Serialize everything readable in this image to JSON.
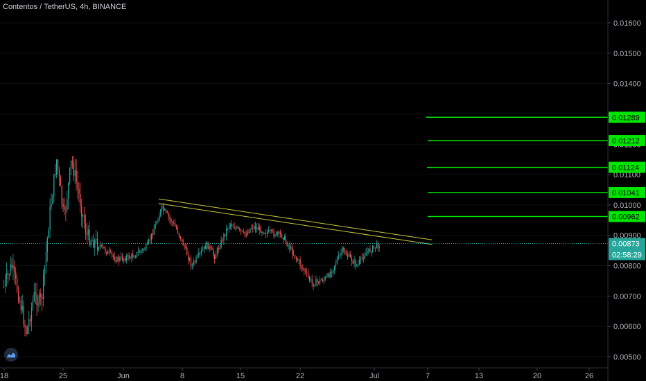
{
  "header": {
    "title": "Contentos / TetherUS, 4h, BINANCE"
  },
  "colors": {
    "background": "#000000",
    "up": "#26a69a",
    "down": "#ef5350",
    "trendline": "#c9c93a",
    "level": "#00e600",
    "last_price": "#26a69a",
    "axis_text": "#b2b5be"
  },
  "chart_data": {
    "type": "candlestick",
    "title": "Contentos / TetherUS, 4h, BINANCE",
    "x_ticks": [
      "18",
      "25",
      "Jun",
      "8",
      "15",
      "22",
      "Jul",
      "7",
      "13",
      "20",
      "26"
    ],
    "y_ticks": [
      "0.01600",
      "0.01500",
      "0.01400",
      "0.01300",
      "0.01200",
      "0.01100",
      "0.01000",
      "0.00900",
      "0.00800",
      "0.00700",
      "0.00600",
      "0.00500"
    ],
    "ylim": [
      0.0046,
      0.017
    ],
    "last_price": {
      "label": "0.00873",
      "value": 0.00873,
      "countdown": "02:58:29"
    },
    "levels": [
      {
        "label": "0.01289",
        "value": 0.01289
      },
      {
        "label": "0.01212",
        "value": 0.01212
      },
      {
        "label": "0.01124",
        "value": 0.01124
      },
      {
        "label": "0.01041",
        "value": 0.01041
      },
      {
        "label": "0.00962",
        "value": 0.00962
      }
    ],
    "trendlines": [
      {
        "from": {
          "x": "Jun 8",
          "y": 0.0102
        },
        "to": {
          "x": "Jul 14",
          "y": 0.00885
        }
      },
      {
        "from": {
          "x": "Jun 8",
          "y": 0.01005
        },
        "to": {
          "x": "Jul 14",
          "y": 0.0087
        }
      }
    ],
    "price_path": [
      {
        "x": "May 18",
        "price": 0.0073
      },
      {
        "x": "May 19",
        "price": 0.008
      },
      {
        "x": "May 20",
        "price": 0.007
      },
      {
        "x": "May 21",
        "price": 0.0058
      },
      {
        "x": "May 22",
        "price": 0.007
      },
      {
        "x": "May 23",
        "price": 0.0068
      },
      {
        "x": "May 24",
        "price": 0.0095
      },
      {
        "x": "May 25",
        "price": 0.0115
      },
      {
        "x": "May 26",
        "price": 0.0095
      },
      {
        "x": "May 27",
        "price": 0.0115
      },
      {
        "x": "May 28",
        "price": 0.0103
      },
      {
        "x": "May 29",
        "price": 0.009
      },
      {
        "x": "May 31",
        "price": 0.0086
      },
      {
        "x": "Jun 2",
        "price": 0.0082
      },
      {
        "x": "Jun 4",
        "price": 0.0083
      },
      {
        "x": "Jun 6",
        "price": 0.0086
      },
      {
        "x": "Jun 8",
        "price": 0.0099
      },
      {
        "x": "Jun 10",
        "price": 0.0092
      },
      {
        "x": "Jun 12",
        "price": 0.008
      },
      {
        "x": "Jun 14",
        "price": 0.0087
      },
      {
        "x": "Jun 15",
        "price": 0.0083
      },
      {
        "x": "Jun 17",
        "price": 0.0094
      },
      {
        "x": "Jun 19",
        "price": 0.009
      },
      {
        "x": "Jun 20",
        "price": 0.0093
      },
      {
        "x": "Jun 22",
        "price": 0.0091
      },
      {
        "x": "Jun 24",
        "price": 0.009
      },
      {
        "x": "Jun 26",
        "price": 0.0082
      },
      {
        "x": "Jun 28",
        "price": 0.0074
      },
      {
        "x": "Jun 30",
        "price": 0.0076
      },
      {
        "x": "Jul 2",
        "price": 0.0085
      },
      {
        "x": "Jul 4",
        "price": 0.008
      },
      {
        "x": "Jul 5",
        "price": 0.0084
      },
      {
        "x": "Jul 7",
        "price": 0.00873
      }
    ]
  }
}
